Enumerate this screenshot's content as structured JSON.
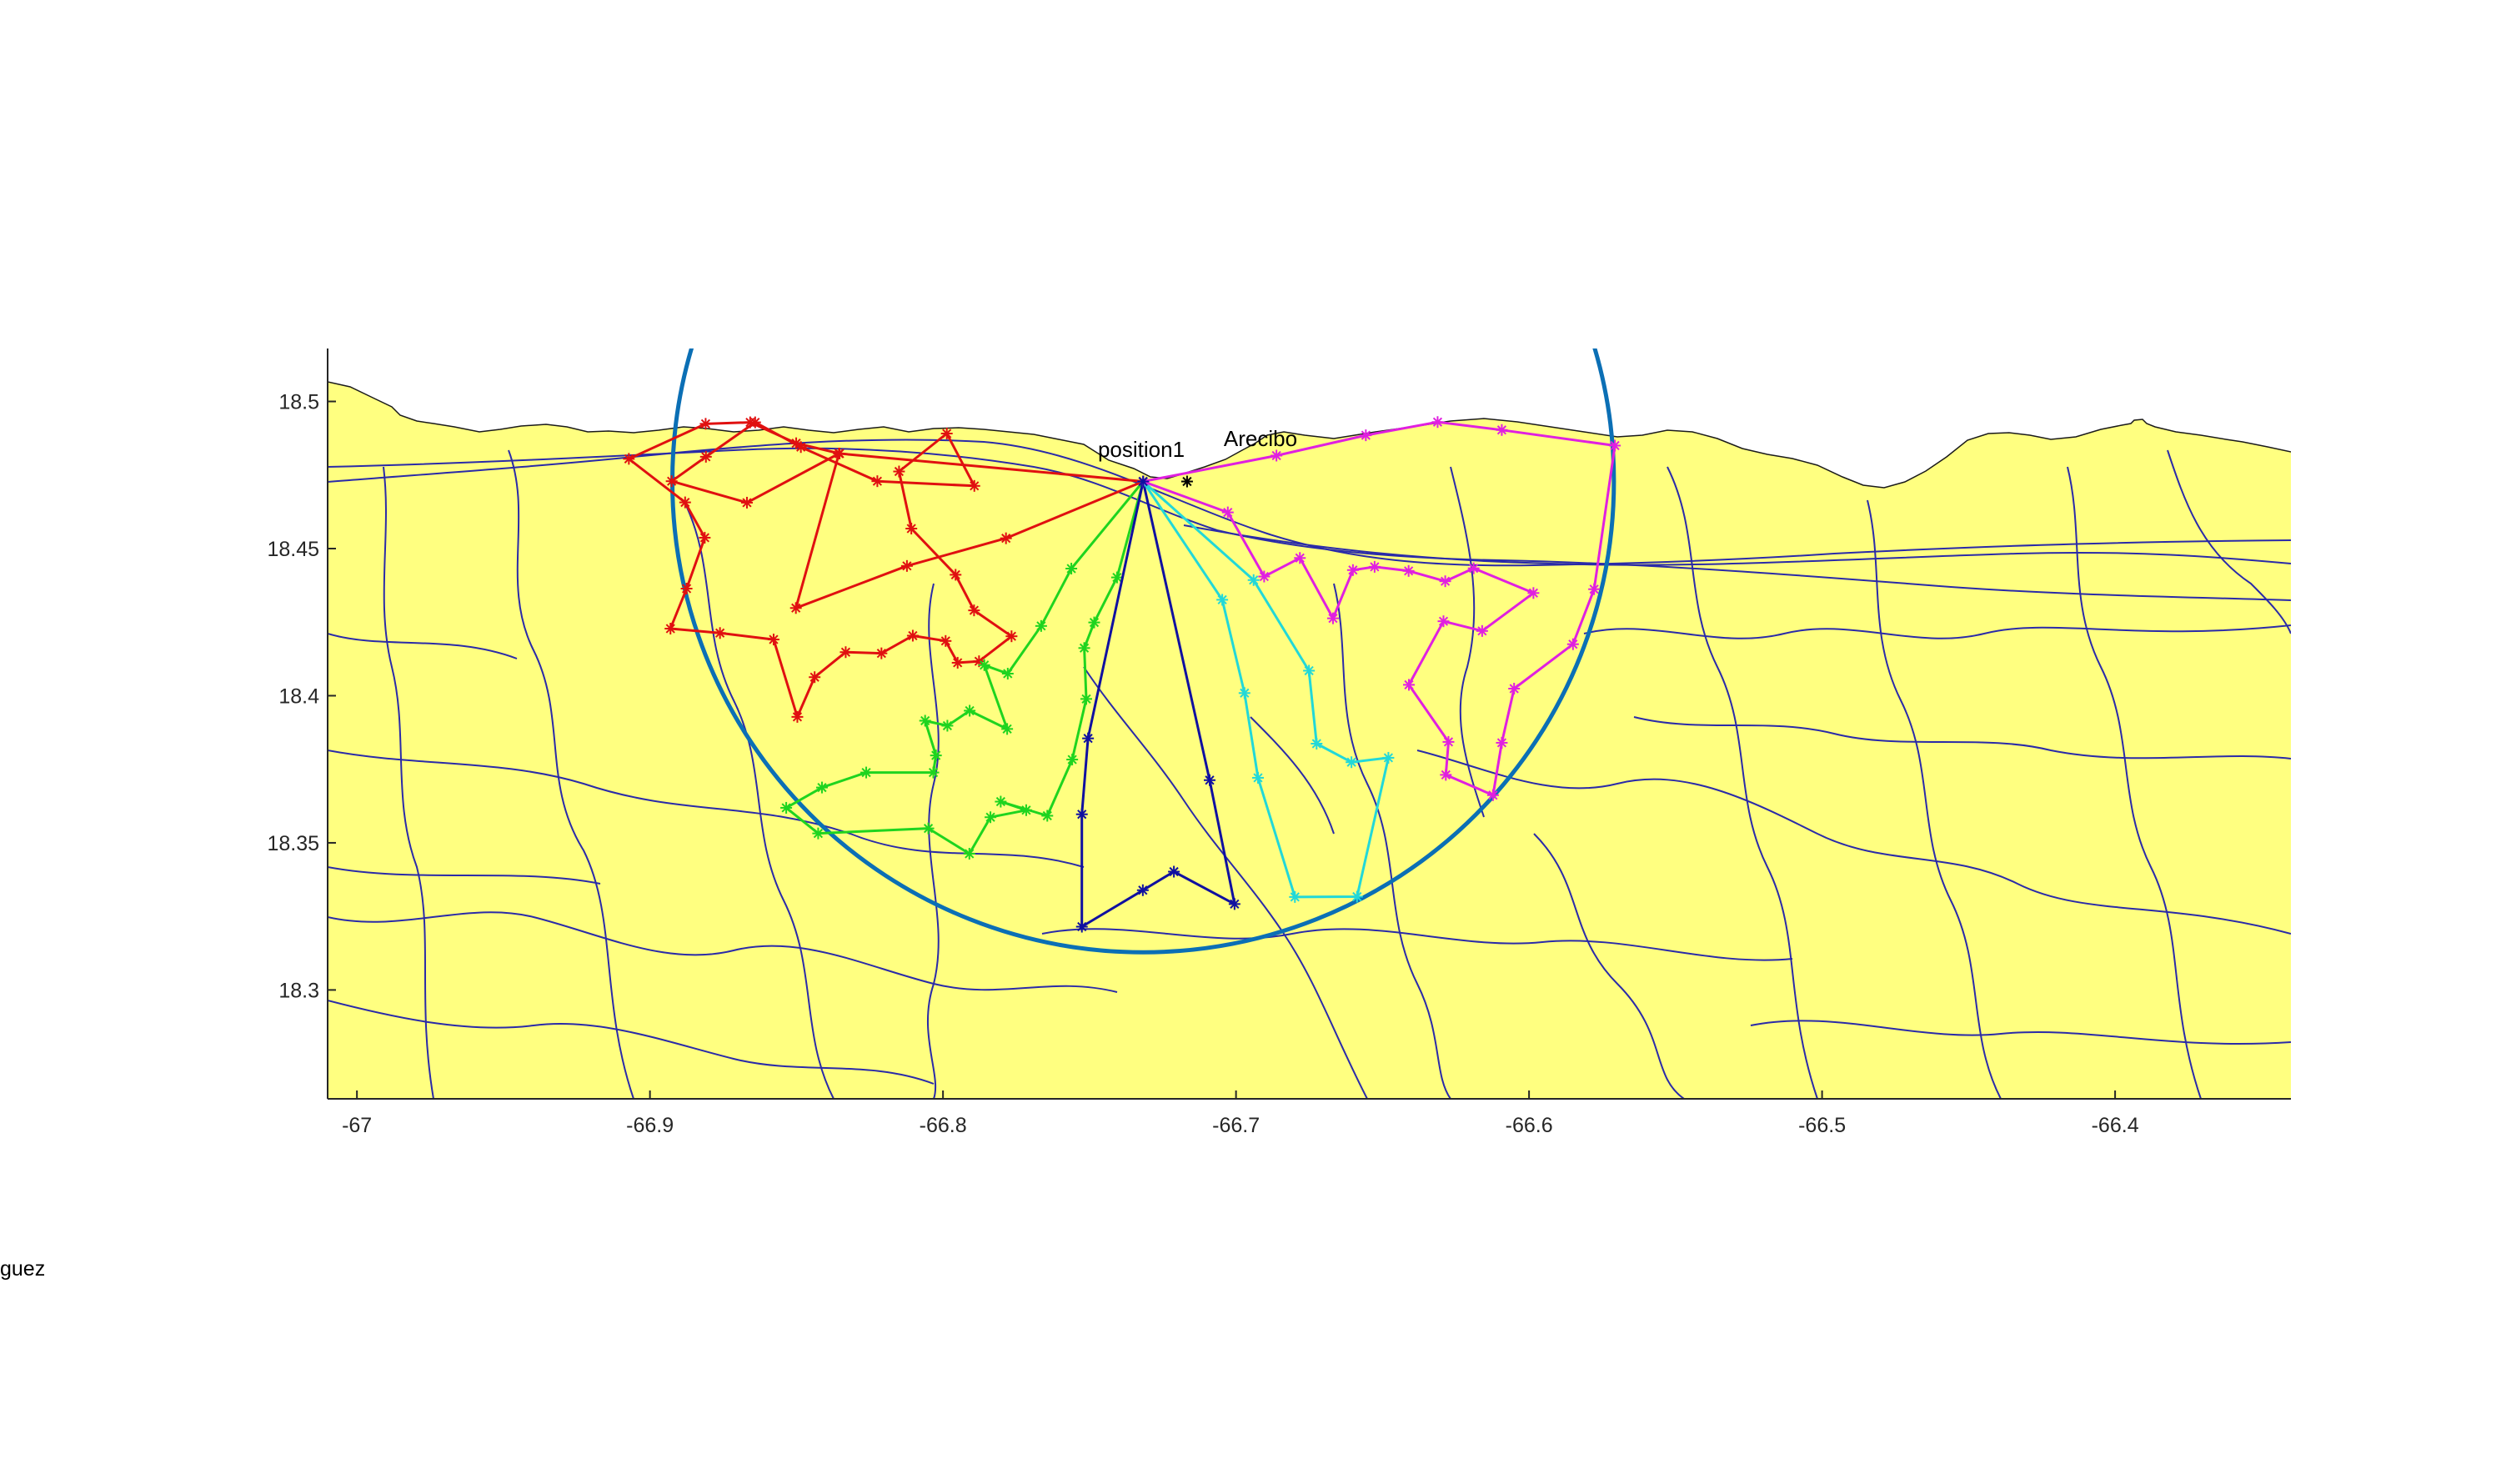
{
  "chart_data": {
    "type": "map",
    "title": "",
    "xlabel": "",
    "ylabel": "",
    "xlim": [
      -67.01,
      -66.34
    ],
    "ylim": [
      18.263,
      18.518
    ],
    "x_ticks": [
      -67,
      -66.9,
      -66.8,
      -66.7,
      -66.6,
      -66.5,
      -66.4
    ],
    "x_tick_labels": [
      "-67",
      "-66.9",
      "-66.8",
      "-66.7",
      "-66.6",
      "-66.5",
      "-66.4"
    ],
    "y_ticks": [
      18.5,
      18.45,
      18.4,
      18.35,
      18.3
    ],
    "y_tick_labels": [
      "18.5",
      "18.45",
      "18.4",
      "18.35",
      "18.3"
    ],
    "grid": false,
    "colors": {
      "land": "#ffff80",
      "roads": "#2a2aa8",
      "circle": "#0b6fb5",
      "route_red": "#e01010",
      "route_green": "#1fd41f",
      "route_blue": "#1010a0",
      "route_cyan": "#22d8d8",
      "route_magenta": "#e020e0"
    },
    "coverage_circle": {
      "center": [
        -66.7317,
        18.4728
      ],
      "radius_deg": 0.16
    },
    "depot": {
      "name": "position1",
      "lon": -66.7317,
      "lat": 18.4728
    },
    "city": {
      "name": "Arecibo",
      "lon": -66.7167,
      "lat": 18.4728
    },
    "routes": [
      {
        "color": "route_red",
        "points": [
          [
            -66.7317,
            18.4728
          ],
          [
            -66.7785,
            18.4535
          ],
          [
            -66.8123,
            18.4441
          ],
          [
            -66.8502,
            18.4298
          ],
          [
            -66.8355,
            18.4823
          ],
          [
            -66.8669,
            18.4656
          ],
          [
            -66.8926,
            18.4729
          ],
          [
            -66.8809,
            18.4812
          ],
          [
            -66.8641,
            18.4929
          ],
          [
            -66.8485,
            18.4845
          ],
          [
            -66.8224,
            18.4729
          ],
          [
            -66.7893,
            18.4713
          ],
          [
            -66.7987,
            18.4891
          ],
          [
            -66.815,
            18.4762
          ],
          [
            -66.8108,
            18.4568
          ],
          [
            -66.7957,
            18.4411
          ],
          [
            -66.7894,
            18.429
          ],
          [
            -66.7766,
            18.4202
          ],
          [
            -66.7877,
            18.4117
          ],
          [
            -66.795,
            18.4112
          ],
          [
            -66.7991,
            18.4186
          ],
          [
            -66.8103,
            18.4204
          ],
          [
            -66.821,
            18.4144
          ],
          [
            -66.8332,
            18.4148
          ],
          [
            -66.8438,
            18.4063
          ],
          [
            -66.8497,
            18.3928
          ],
          [
            -66.8578,
            18.4191
          ],
          [
            -66.8761,
            18.4213
          ],
          [
            -66.893,
            18.4228
          ],
          [
            -66.8875,
            18.4364
          ],
          [
            -66.8813,
            18.4537
          ],
          [
            -66.888,
            18.4657
          ],
          [
            -66.9072,
            18.4805
          ],
          [
            -66.881,
            18.4924
          ],
          [
            -66.8658,
            18.4929
          ],
          [
            -66.8501,
            18.4858
          ],
          [
            -66.8353,
            18.4823
          ],
          [
            -66.7317,
            18.4728
          ]
        ]
      },
      {
        "color": "route_green",
        "points": [
          [
            -66.7317,
            18.4728
          ],
          [
            -66.7562,
            18.4432
          ],
          [
            -66.7665,
            18.4237
          ],
          [
            -66.7779,
            18.4075
          ],
          [
            -66.7859,
            18.4104
          ],
          [
            -66.7781,
            18.3887
          ],
          [
            -66.7909,
            18.3949
          ],
          [
            -66.7985,
            18.3898
          ],
          [
            -66.8061,
            18.3915
          ],
          [
            -66.8024,
            18.3797
          ],
          [
            -66.8033,
            18.3739
          ],
          [
            -66.8262,
            18.3739
          ],
          [
            -66.8413,
            18.3688
          ],
          [
            -66.8535,
            18.3619
          ],
          [
            -66.8426,
            18.3532
          ],
          [
            -66.805,
            18.3549
          ],
          [
            -66.791,
            18.3463
          ],
          [
            -66.7838,
            18.3587
          ],
          [
            -66.7716,
            18.3611
          ],
          [
            -66.7803,
            18.364
          ],
          [
            -66.7644,
            18.3592
          ],
          [
            -66.7559,
            18.3783
          ],
          [
            -66.7511,
            18.3989
          ],
          [
            -66.7518,
            18.4162
          ],
          [
            -66.7484,
            18.4249
          ],
          [
            -66.7406,
            18.4402
          ],
          [
            -66.7317,
            18.4728
          ]
        ]
      },
      {
        "color": "route_blue",
        "points": [
          [
            -66.7317,
            18.4728
          ],
          [
            -66.7505,
            18.3855
          ],
          [
            -66.7526,
            18.3597
          ],
          [
            -66.7526,
            18.3215
          ],
          [
            -66.7318,
            18.3339
          ],
          [
            -66.7212,
            18.3402
          ],
          [
            -66.7005,
            18.3292
          ],
          [
            -66.709,
            18.3713
          ],
          [
            -66.7317,
            18.4728
          ]
        ]
      },
      {
        "color": "route_cyan",
        "points": [
          [
            -66.7317,
            18.4728
          ],
          [
            -66.7047,
            18.4326
          ],
          [
            -66.6971,
            18.4009
          ],
          [
            -66.6925,
            18.3721
          ],
          [
            -66.6799,
            18.3316
          ],
          [
            -66.6587,
            18.3317
          ],
          [
            -66.648,
            18.3789
          ],
          [
            -66.6606,
            18.3774
          ],
          [
            -66.6725,
            18.3837
          ],
          [
            -66.6751,
            18.4085
          ],
          [
            -66.694,
            18.4393
          ],
          [
            -66.7317,
            18.4728
          ]
        ]
      },
      {
        "color": "route_magenta",
        "points": [
          [
            -66.7317,
            18.4728
          ],
          [
            -66.7028,
            18.4623
          ],
          [
            -66.6904,
            18.4405
          ],
          [
            -66.6782,
            18.4468
          ],
          [
            -66.6669,
            18.4263
          ],
          [
            -66.6601,
            18.4427
          ],
          [
            -66.6527,
            18.4438
          ],
          [
            -66.6411,
            18.4424
          ],
          [
            -66.6286,
            18.4389
          ],
          [
            -66.6189,
            18.4433
          ],
          [
            -66.5985,
            18.4349
          ],
          [
            -66.616,
            18.422
          ],
          [
            -66.6292,
            18.4253
          ],
          [
            -66.641,
            18.4037
          ],
          [
            -66.6275,
            18.3843
          ],
          [
            -66.6284,
            18.3731
          ],
          [
            -66.6123,
            18.3662
          ],
          [
            -66.6093,
            18.384
          ],
          [
            -66.6051,
            18.4024
          ],
          [
            -66.585,
            18.4175
          ],
          [
            -66.5778,
            18.4362
          ],
          [
            -66.5707,
            18.485
          ],
          [
            -66.6093,
            18.4903
          ],
          [
            -66.6312,
            18.493
          ],
          [
            -66.6557,
            18.4885
          ],
          [
            -66.6862,
            18.4816
          ],
          [
            -66.7317,
            18.4728
          ]
        ]
      }
    ]
  },
  "labels": {
    "depot": "position1",
    "city": "Arecibo",
    "stray_text": "guez"
  }
}
